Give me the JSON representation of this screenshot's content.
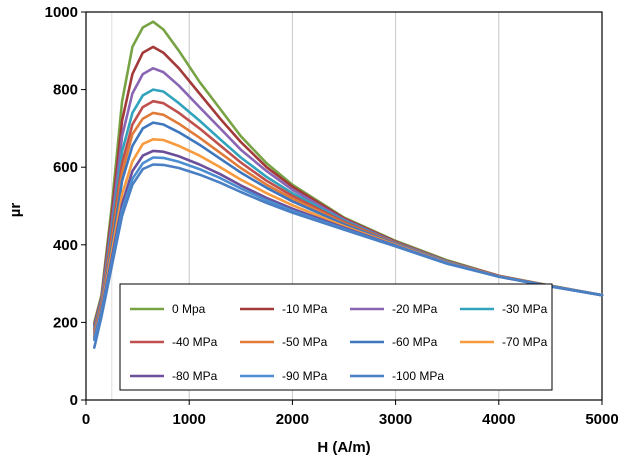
{
  "chart_data": {
    "type": "line",
    "title": "",
    "xlabel": "H (A/m)",
    "ylabel": "µr",
    "xlim": [
      0,
      5000
    ],
    "ylim": [
      0,
      1000
    ],
    "xticks": [
      0,
      1000,
      2000,
      3000,
      4000,
      5000
    ],
    "yticks": [
      0,
      200,
      400,
      600,
      800,
      1000
    ],
    "grid": "vertical",
    "legend_position": "bottom-center",
    "x": [
      80,
      150,
      250,
      350,
      450,
      550,
      650,
      750,
      900,
      1100,
      1300,
      1500,
      1750,
      2000,
      2500,
      3000,
      3500,
      4000,
      4500,
      5000
    ],
    "series": [
      {
        "name": "0 Mpa",
        "color": "#77a345",
        "values": [
          200,
          270,
          500,
          770,
          910,
          960,
          975,
          955,
          900,
          820,
          750,
          680,
          610,
          555,
          470,
          410,
          360,
          320,
          295,
          270
        ]
      },
      {
        "name": "-10 MPa",
        "color": "#a33a3a",
        "values": [
          195,
          265,
          480,
          720,
          840,
          895,
          910,
          895,
          855,
          790,
          725,
          665,
          600,
          550,
          468,
          408,
          358,
          320,
          294,
          270
        ]
      },
      {
        "name": "-20 MPa",
        "color": "#8a65b3",
        "values": [
          190,
          260,
          460,
          680,
          790,
          840,
          855,
          845,
          810,
          755,
          700,
          645,
          590,
          542,
          465,
          406,
          357,
          319,
          294,
          270
        ]
      },
      {
        "name": "-30 MPa",
        "color": "#31a3bd",
        "values": [
          185,
          255,
          440,
          640,
          740,
          785,
          800,
          795,
          765,
          720,
          672,
          625,
          575,
          533,
          462,
          405,
          356,
          319,
          294,
          270
        ]
      },
      {
        "name": "-40 MPa",
        "color": "#c0504d",
        "values": [
          180,
          250,
          425,
          610,
          710,
          755,
          770,
          765,
          740,
          700,
          656,
          612,
          565,
          526,
          459,
          404,
          355,
          319,
          294,
          270
        ]
      },
      {
        "name": "-50 MPa",
        "color": "#e07b39",
        "values": [
          175,
          245,
          410,
          585,
          685,
          725,
          740,
          735,
          712,
          676,
          637,
          598,
          555,
          519,
          456,
          403,
          355,
          319,
          294,
          270
        ]
      },
      {
        "name": "-60 MPa",
        "color": "#3f77bf",
        "values": [
          170,
          240,
          395,
          565,
          655,
          700,
          715,
          710,
          690,
          658,
          622,
          586,
          547,
          512,
          453,
          402,
          354,
          318,
          293,
          270
        ]
      },
      {
        "name": "-70 MPa",
        "color": "#f79b3e",
        "values": [
          165,
          235,
          380,
          530,
          615,
          660,
          672,
          670,
          655,
          630,
          600,
          568,
          533,
          502,
          448,
          400,
          353,
          318,
          293,
          270
        ]
      },
      {
        "name": "-80 MPa",
        "color": "#6b4f9a",
        "values": [
          160,
          230,
          365,
          505,
          590,
          630,
          642,
          640,
          628,
          607,
          582,
          553,
          521,
          493,
          444,
          398,
          352,
          318,
          293,
          270
        ]
      },
      {
        "name": "-90 MPa",
        "color": "#4b8dd1",
        "values": [
          155,
          225,
          355,
          490,
          570,
          610,
          625,
          624,
          614,
          595,
          572,
          545,
          515,
          488,
          441,
          397,
          352,
          318,
          293,
          270
        ]
      },
      {
        "name": "-100 MPa",
        "color": "#4a7fc4",
        "values": [
          135,
          215,
          345,
          475,
          555,
          595,
          607,
          606,
          598,
          581,
          560,
          536,
          508,
          483,
          439,
          396,
          351,
          318,
          293,
          270
        ]
      }
    ]
  }
}
